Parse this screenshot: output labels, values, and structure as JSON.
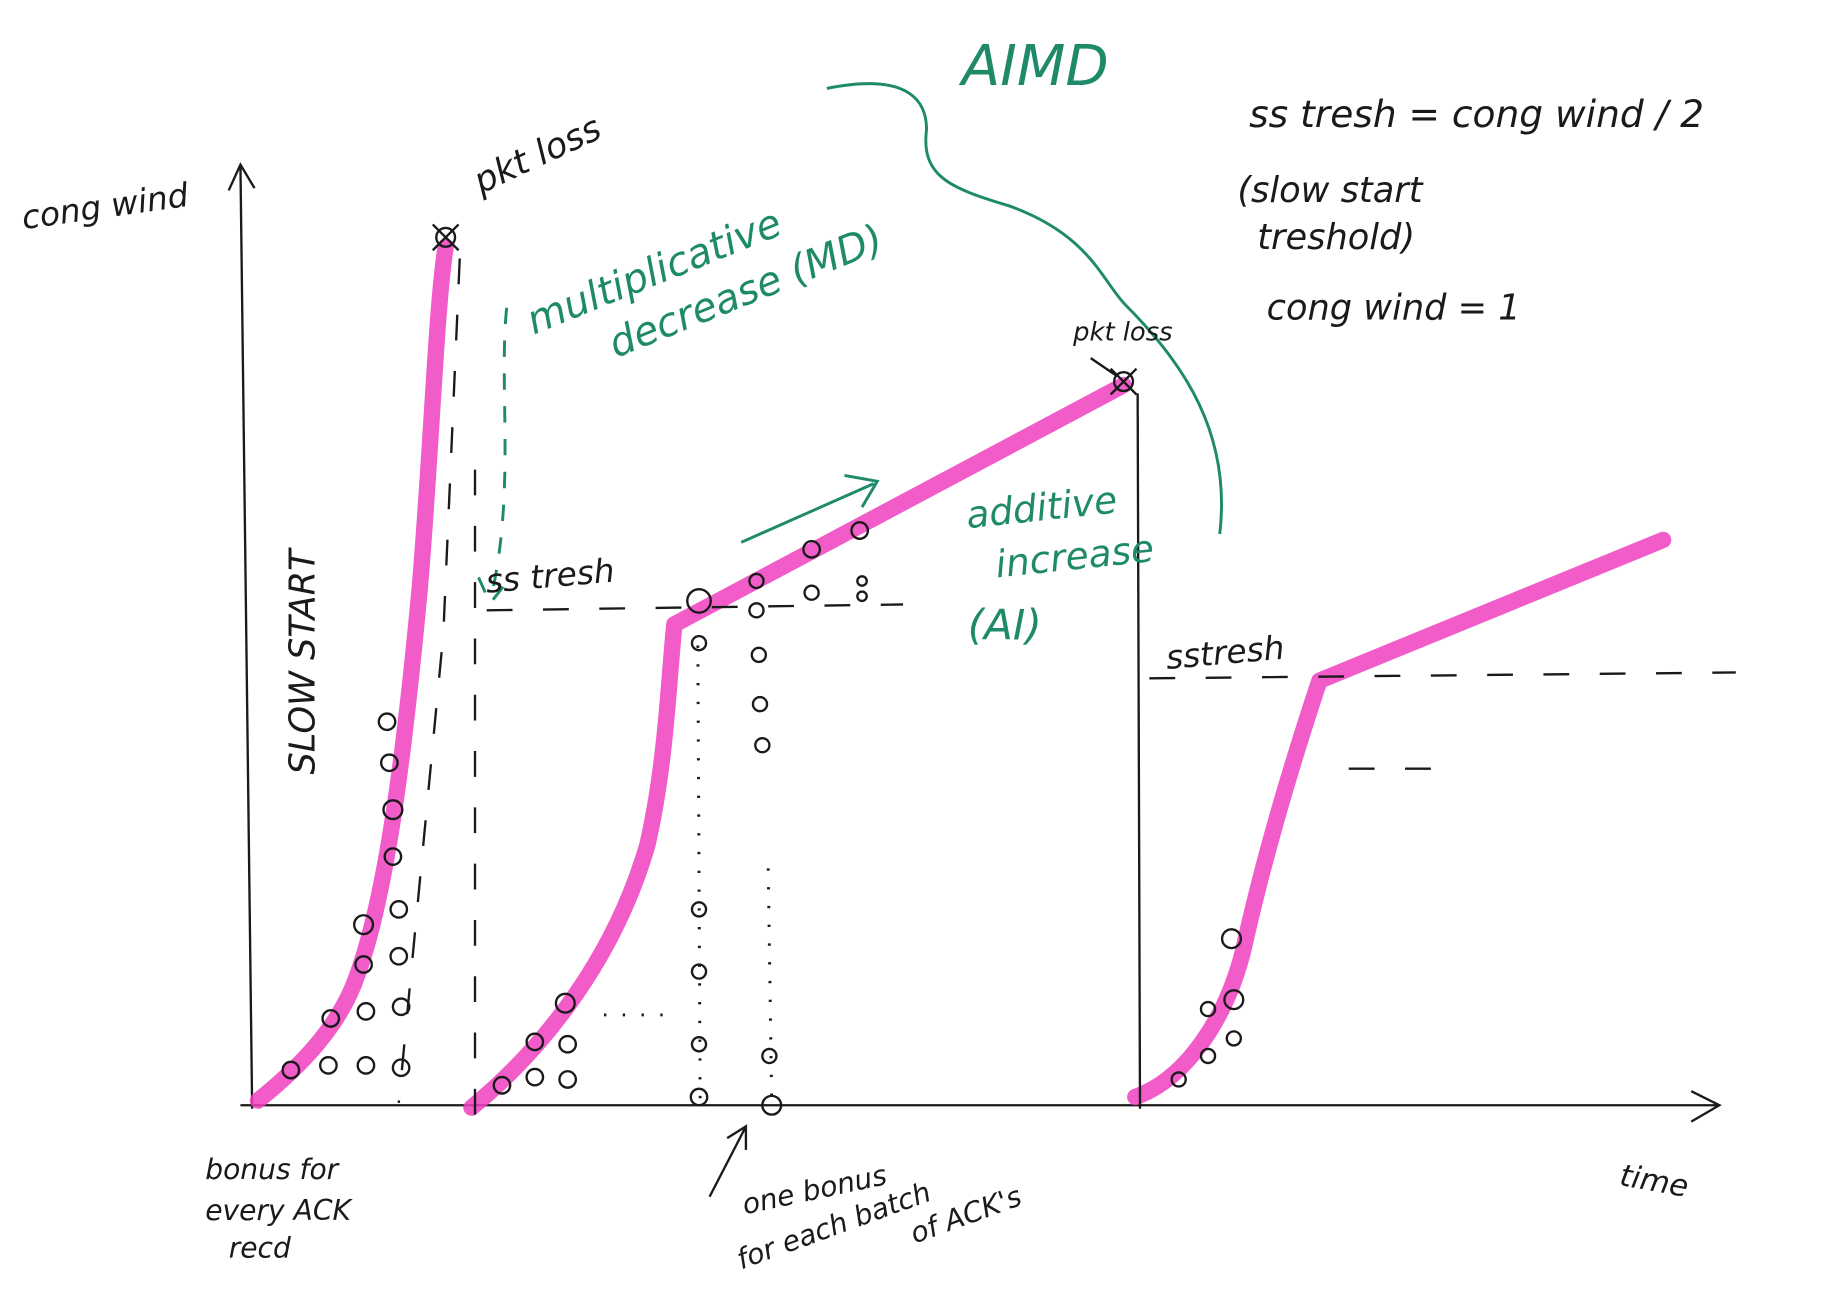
{
  "title": "AIMD",
  "axes": {
    "y_label": "cong wind",
    "x_label": "time"
  },
  "annotations": {
    "pkt_loss_1": "pkt loss",
    "pkt_loss_2": "pkt loss",
    "slow_start": "SLOW START",
    "md": [
      "multiplicative",
      "decrease (MD)"
    ],
    "ai": [
      "additive",
      "increase",
      "(AI)"
    ],
    "ssthresh_1": "ss tresh",
    "ssthresh_2": "sstresh",
    "bonus_every": [
      "bonus for",
      "every ACK",
      "recd"
    ],
    "bonus_batch": [
      "one bonus",
      "for each batch",
      "of ACK's"
    ]
  },
  "notes": [
    "ss tresh = cong wind / 2",
    "(slow start",
    "treshold)",
    "cong wind = 1"
  ]
}
